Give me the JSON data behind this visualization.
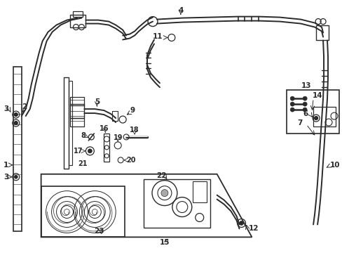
{
  "bg_color": "#ffffff",
  "lc": "#2a2a2a",
  "lw_tube": 1.4,
  "lw_thin": 0.8,
  "figsize": [
    4.89,
    3.6
  ],
  "dpi": 100
}
